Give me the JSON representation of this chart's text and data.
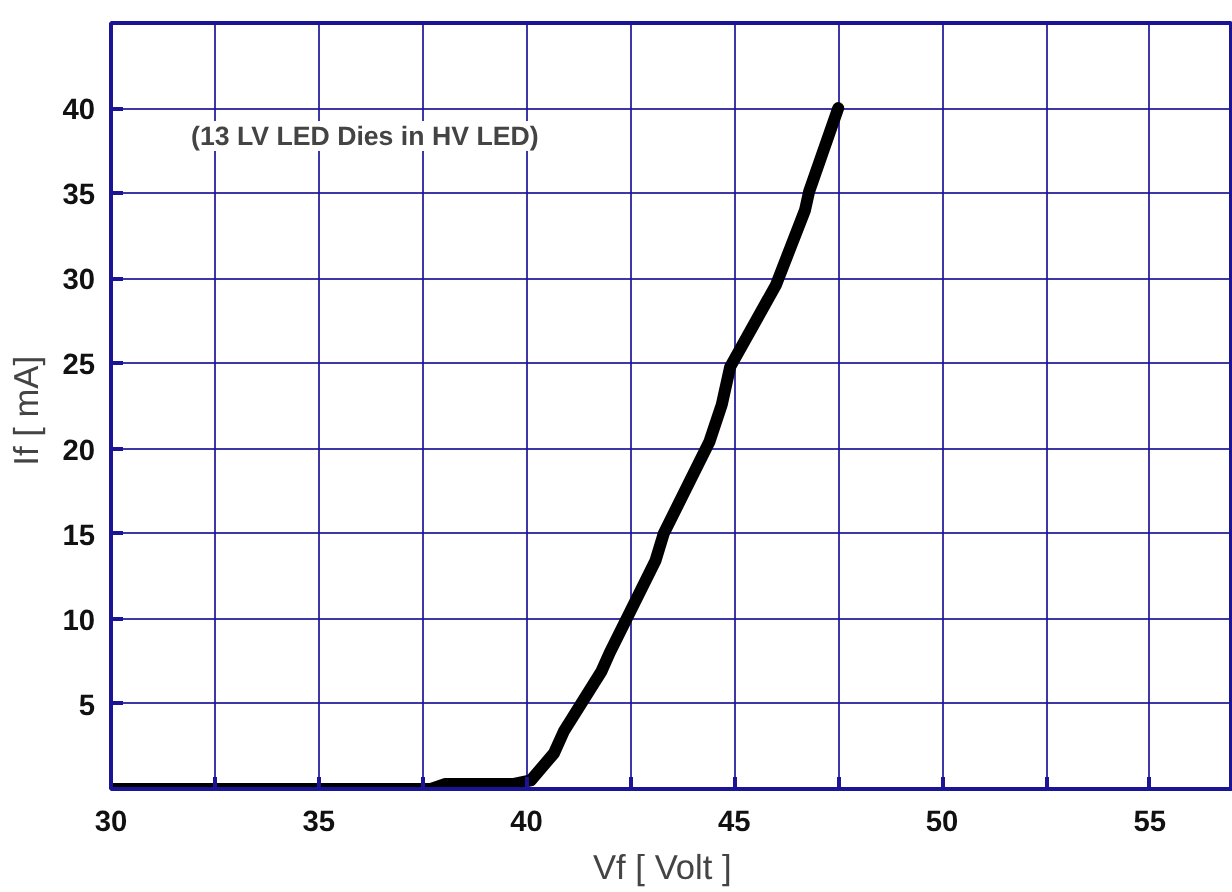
{
  "chart_data": {
    "type": "line",
    "xlabel": "Vf   [ Volt ]",
    "ylabel": "If  [ mA]",
    "annotations": [
      "(13 LV LED Dies in HV LED)"
    ],
    "x": [
      30,
      37.7,
      38.05,
      39.7,
      40.1,
      40.66,
      40.9,
      41.8,
      42.0,
      43.1,
      43.3,
      44.4,
      44.7,
      44.9,
      46.0,
      46.7,
      46.8,
      47.5
    ],
    "series": [
      {
        "color": "#000000",
        "values": [
          0,
          0,
          0.3,
          0.3,
          0.5,
          2.1,
          3.4,
          6.9,
          8.0,
          13.4,
          15,
          20.4,
          22.6,
          24.8,
          29.6,
          34.0,
          35.1,
          40
        ]
      }
    ],
    "xlim": [
      30,
      57
    ],
    "ylim": [
      0,
      45
    ],
    "xticks": [
      30,
      {
        "value": 32.5,
        "label": null
      },
      35,
      {
        "value": 37.5,
        "label": null
      },
      40,
      {
        "value": 42.5,
        "label": null
      },
      45,
      {
        "value": 47.5,
        "label": null
      },
      50,
      {
        "value": 52.5,
        "label": null
      },
      55
    ],
    "yticks": [
      5,
      10,
      15,
      20,
      25,
      30,
      35,
      40
    ],
    "grid": true,
    "marker": "none",
    "line_style": "solid"
  }
}
